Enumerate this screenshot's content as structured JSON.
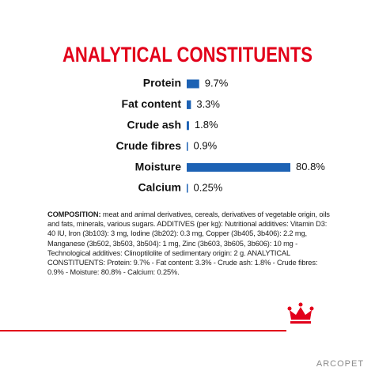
{
  "chart_data": {
    "type": "bar",
    "orientation": "horizontal",
    "title": "ANALYTICAL CONSTITUENTS",
    "categories": [
      "Protein",
      "Fat content",
      "Crude ash",
      "Crude fibres",
      "Moisture",
      "Calcium"
    ],
    "values": [
      9.7,
      3.3,
      1.8,
      0.9,
      80.8,
      0.25
    ],
    "value_labels": [
      "9.7%",
      "3.3%",
      "1.8%",
      "0.9%",
      "80.8%",
      "0.25%"
    ],
    "color": "#1d62b4"
  },
  "composition": {
    "label": "COMPOSITION:",
    "text": "meat and animal derivatives, cereals, derivatives of vegetable origin, oils and fats, minerals, various sugars. ADDITIVES (per kg): Nutritional additives: Vitamin D3: 40 IU, Iron (3b103): 3 mg, Iodine (3b202): 0.3 mg, Copper (3b405, 3b406): 2.2 mg, Manganese (3b502, 3b503, 3b504): 1 mg, Zinc (3b603, 3b605, 3b606): 10 mg - Technological additives: Clinoptilolite of sedimentary origin: 2 g. ANALYTICAL CONSTITUENTS: Protein: 9.7% - Fat content: 3.3% - Crude ash: 1.8% - Crude fibres: 0.9% - Moisture: 80.8% - Calcium: 0.25%."
  },
  "watermark": "ARCOPET"
}
